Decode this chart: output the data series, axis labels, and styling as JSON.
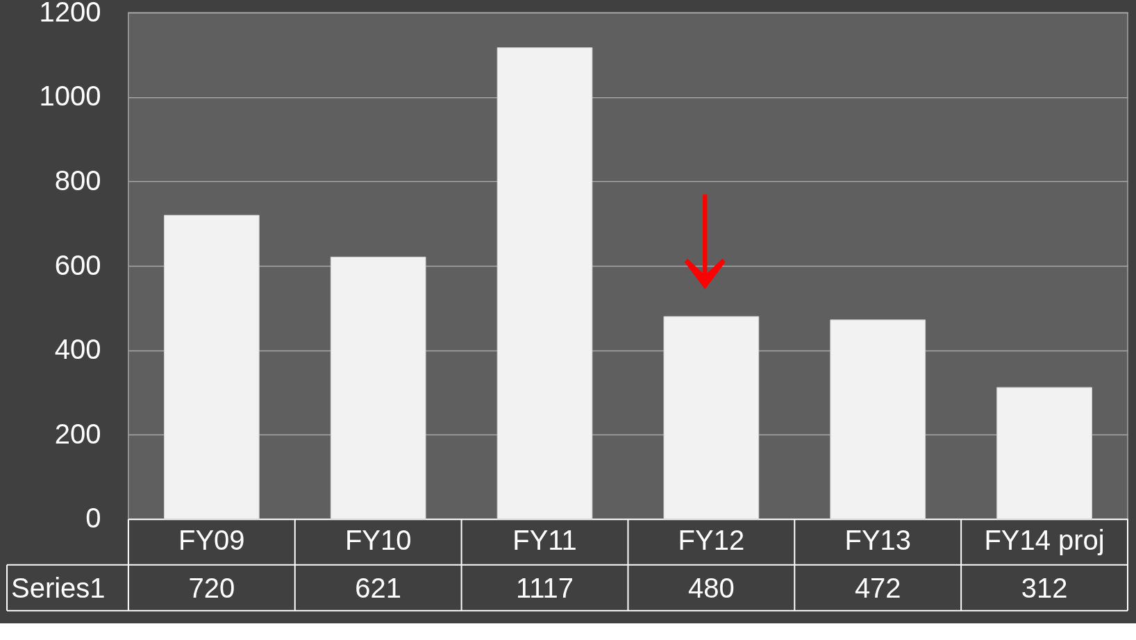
{
  "chart_data": {
    "type": "bar",
    "categories": [
      "FY09",
      "FY10",
      "FY11",
      "FY12",
      "FY13",
      "FY14 proj"
    ],
    "series": [
      {
        "name": "Series1",
        "color": "#f2f2f2",
        "values": [
          720,
          621,
          1117,
          480,
          472,
          312
        ]
      }
    ],
    "ylim": [
      0,
      1200
    ],
    "yticks": [
      0,
      200,
      400,
      600,
      800,
      1000,
      1200
    ],
    "grid": "y",
    "data_labels": true,
    "legend": "bottom left"
  }
}
